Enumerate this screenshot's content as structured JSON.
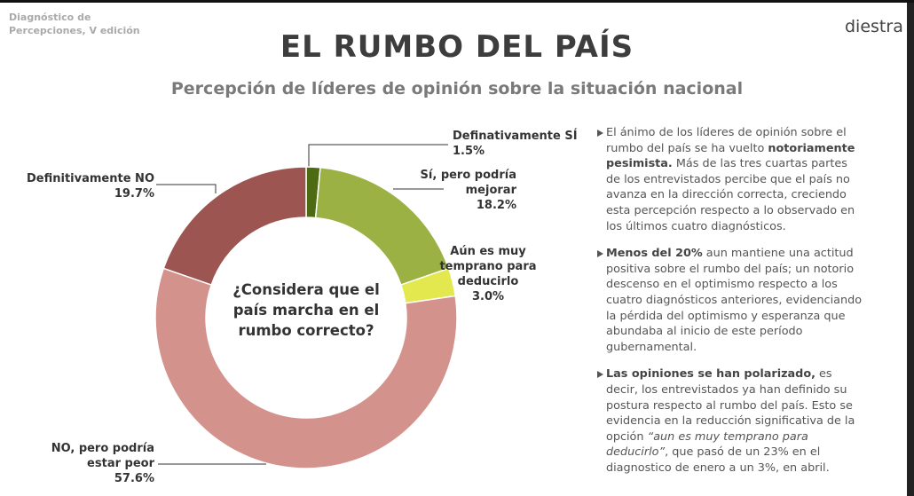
{
  "header": {
    "source": [
      "Diagnóstico de",
      "Percepciones, V edición"
    ],
    "logo": "diestra"
  },
  "chart_data": {
    "type": "donut",
    "title": "EL RUMBO DEL PAÍS",
    "subtitle": "Percepción de líderes de opinión sobre la situación nacional",
    "center_label": "¿Considera que el país marcha en el rumbo correcto?",
    "categories": [
      "Definativamente SÍ",
      "Sí, pero podría mejorar",
      "Aún es muy temprano para deducirlo",
      "NO, pero podría estar peor",
      "Definitivamente NO"
    ],
    "values": [
      1.5,
      18.2,
      3.0,
      57.6,
      19.7
    ],
    "value_labels": [
      "1.5%",
      "18.2%",
      "3.0%",
      "57.6%",
      "19.7%"
    ],
    "colors": [
      "#4d6b12",
      "#9bb144",
      "#e3e84e",
      "#d4928c",
      "#9c5551"
    ]
  },
  "notes": [
    [
      {
        "text": "El ánimo de los líderes de opinión sobre el rumbo del país se ha vuelto "
      },
      {
        "text": "notoriamente pesimista.",
        "bold": true
      },
      {
        "text": " Más de las tres cuartas partes de los entrevistados percibe que el país no avanza en la dirección correcta, creciendo esta percepción respecto a lo observado en los últimos cuatro diagnósticos."
      }
    ],
    [
      {
        "text": "Menos del 20%",
        "bold": true
      },
      {
        "text": " aun mantiene una actitud positiva sobre el rumbo del país; un notorio descenso en el optimismo respecto a los cuatro diagnósticos anteriores, evidenciando la pérdida del optimismo y esperanza que abundaba al inicio de este período gubernamental."
      }
    ],
    [
      {
        "text": "Las opiniones se han polarizado,",
        "bold": true
      },
      {
        "text": " es decir, los entrevistados ya han definido su postura respecto al rumbo del país. Esto se evidencia en la reducción significativa de la opción "
      },
      {
        "text": "“aun es muy temprano para deducirlo”",
        "italic": true
      },
      {
        "text": ", que pasó de un 23% en el diagnostico de enero  a un 3%, en abril."
      }
    ]
  ]
}
